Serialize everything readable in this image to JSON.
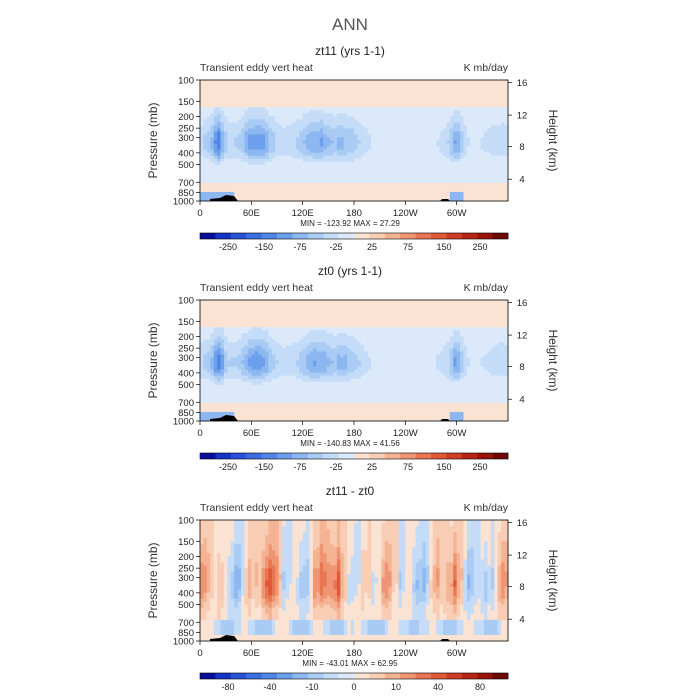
{
  "page_title": "ANN",
  "chart_data": [
    {
      "type": "heatmap",
      "title": "zt11 (yrs 1-1)",
      "left_label": "Transient eddy vert heat",
      "right_label": "K mb/day",
      "ylabel": "Pressure (mb)",
      "y2label": "Height (km)",
      "pressure_ticks": [
        "100",
        "150",
        "200",
        "250",
        "300",
        "400",
        "500",
        "700",
        "850",
        "1000"
      ],
      "height_ticks": [
        "4",
        "8",
        "12",
        "16"
      ],
      "x_ticks": [
        "0",
        "60E",
        "120E",
        "180",
        "120W",
        "60W"
      ],
      "stats": "MIN = -123.92   MAX =  27.29",
      "colorbar_labels": [
        "-250",
        "-150",
        "-75",
        "-25",
        "25",
        "75",
        "150",
        "250"
      ],
      "colorbar_colors": [
        "#08109a",
        "#1533c4",
        "#2a52d8",
        "#3a6de0",
        "#4f86e6",
        "#6da0ec",
        "#8db7f0",
        "#a9cbf4",
        "#c4dcf8",
        "#dbe9fa",
        "#fbe3d3",
        "#f8cdb4",
        "#f4b393",
        "#ef9573",
        "#e87652",
        "#de5836",
        "#cf3d22",
        "#b82414",
        "#98130b",
        "#6e0808"
      ],
      "mode": "abs"
    },
    {
      "type": "heatmap",
      "title": "zt0 (yrs 1-1)",
      "left_label": "Transient eddy vert heat",
      "right_label": "K mb/day",
      "ylabel": "Pressure (mb)",
      "y2label": "Height (km)",
      "pressure_ticks": [
        "100",
        "150",
        "200",
        "250",
        "300",
        "400",
        "500",
        "700",
        "850",
        "1000"
      ],
      "height_ticks": [
        "4",
        "8",
        "12",
        "16"
      ],
      "x_ticks": [
        "0",
        "60E",
        "120E",
        "180",
        "120W",
        "60W"
      ],
      "stats": "MIN = -140.83   MAX =  41.56",
      "colorbar_labels": [
        "-250",
        "-150",
        "-75",
        "-25",
        "25",
        "75",
        "150",
        "250"
      ],
      "colorbar_colors": [
        "#08109a",
        "#1533c4",
        "#2a52d8",
        "#3a6de0",
        "#4f86e6",
        "#6da0ec",
        "#8db7f0",
        "#a9cbf4",
        "#c4dcf8",
        "#dbe9fa",
        "#fbe3d3",
        "#f8cdb4",
        "#f4b393",
        "#ef9573",
        "#e87652",
        "#de5836",
        "#cf3d22",
        "#b82414",
        "#98130b",
        "#6e0808"
      ],
      "mode": "abs"
    },
    {
      "type": "heatmap",
      "title": "zt11 - zt0",
      "left_label": "Transient eddy vert heat",
      "right_label": "K mb/day",
      "ylabel": "Pressure (mb)",
      "y2label": "Height (km)",
      "pressure_ticks": [
        "100",
        "150",
        "200",
        "250",
        "300",
        "400",
        "500",
        "700",
        "850",
        "1000"
      ],
      "height_ticks": [
        "4",
        "8",
        "12",
        "16"
      ],
      "x_ticks": [
        "0",
        "60E",
        "120E",
        "180",
        "120W",
        "60W"
      ],
      "stats": "MIN = -43.01   MAX =  62.95",
      "colorbar_labels": [
        "-80",
        "-40",
        "-10",
        "0",
        "10",
        "40",
        "80"
      ],
      "colorbar_colors": [
        "#08109a",
        "#1533c4",
        "#2a52d8",
        "#3a6de0",
        "#4f86e6",
        "#6da0ec",
        "#8db7f0",
        "#a9cbf4",
        "#c4dcf8",
        "#dbe9fa",
        "#fbe3d3",
        "#f8cdb4",
        "#f4b393",
        "#ef9573",
        "#e87652",
        "#de5836",
        "#cf3d22",
        "#b82414",
        "#98130b",
        "#6e0808"
      ],
      "mode": "diff"
    }
  ]
}
